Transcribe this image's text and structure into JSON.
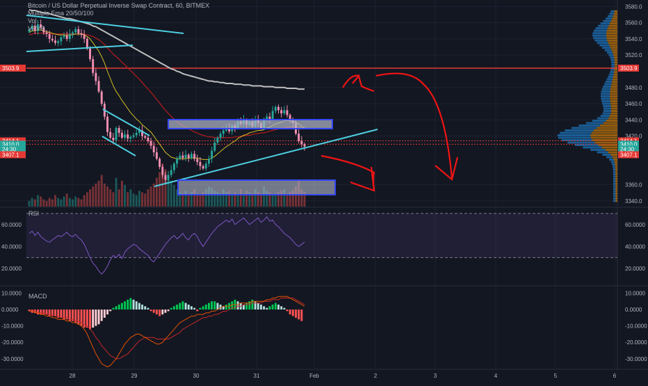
{
  "header": {
    "title": "Bitcoin / US Dollar Perpetual Inverse Swap Contract, 60, BITMEX",
    "indicator1": "Multiple Ema 20/50/100",
    "indicator2": "Vol",
    "indicator3": "VPVR"
  },
  "colors": {
    "background": "#131722",
    "up": "#26a69a",
    "down": "#ef5350",
    "wick_down": "#f48fb1",
    "ema20": "#d4c025",
    "ema50": "#b71c1c",
    "ema100": "#bfbfbf",
    "trendline": "#4dd0e1",
    "hline": "#e53935",
    "annotation": "#f01414",
    "rsi": "#7e57c2",
    "macd": "#e65100",
    "signal": "#c62828",
    "hist_up": "#00c853",
    "hist_up_light": "#b2dfdb",
    "hist_down": "#ff5252",
    "hist_down_light": "#ffcdd2"
  },
  "chart_data": [
    {
      "type": "candlestick",
      "title": "Bitcoin / US Dollar Perpetual Inverse Swap Contract, 60, BITMEX",
      "x_ticks": [
        "28",
        "29",
        "30",
        "31",
        "Feb",
        "2",
        "3",
        "4",
        "5",
        "6"
      ],
      "y_ticks": [
        "3580.0",
        "3560.0",
        "3540.0",
        "3520.0",
        "3480.0",
        "3460.0",
        "3440.0",
        "3420.0",
        "3360.0",
        "3340.0"
      ],
      "ylim": [
        3333,
        3588
      ],
      "price_labels": [
        {
          "value": "3503.9",
          "price": 3503.9,
          "color": "#e53935"
        },
        {
          "value": "3414.1",
          "price": 3414.1,
          "color": "#e53935"
        },
        {
          "value": "3410.0",
          "price": 3410.0,
          "color": "#26a69a"
        },
        {
          "value": "24:30",
          "price": 3404.0,
          "color": "#26a69a"
        },
        {
          "value": "3407.1",
          "price": 3397.0,
          "color": "#e53935"
        }
      ],
      "close_series": [
        3552,
        3556,
        3550,
        3558,
        3554,
        3548,
        3546,
        3540,
        3538,
        3535,
        3537,
        3542,
        3544,
        3540,
        3546,
        3548,
        3552,
        3547,
        3545,
        3540,
        3528,
        3515,
        3498,
        3488,
        3475,
        3460,
        3444,
        3425,
        3418,
        3415,
        3430,
        3424,
        3418,
        3422,
        3417,
        3419,
        3421,
        3424,
        3427,
        3420,
        3418,
        3414,
        3408,
        3400,
        3392,
        3382,
        3372,
        3366,
        3372,
        3378,
        3386,
        3392,
        3396,
        3393,
        3397,
        3393,
        3398,
        3392,
        3388,
        3383,
        3380,
        3386,
        3392,
        3402,
        3412,
        3418,
        3423,
        3427,
        3430,
        3426,
        3433,
        3430,
        3438,
        3435,
        3440,
        3434,
        3438,
        3432,
        3440,
        3436,
        3430,
        3440,
        3444,
        3441,
        3451,
        3456,
        3452,
        3448,
        3452,
        3446,
        3440,
        3436,
        3423,
        3414,
        3410,
        3407
      ],
      "ema20_series": [
        3548,
        3550,
        3550,
        3551,
        3551,
        3550,
        3549,
        3548,
        3547,
        3546,
        3545,
        3545,
        3545,
        3544,
        3545,
        3545,
        3546,
        3546,
        3546,
        3545,
        3543,
        3540,
        3535,
        3530,
        3525,
        3518,
        3510,
        3500,
        3491,
        3482,
        3475,
        3470,
        3464,
        3459,
        3454,
        3449,
        3445,
        3441,
        3438,
        3434,
        3431,
        3428,
        3425,
        3420,
        3415,
        3410,
        3405,
        3400,
        3397,
        3394,
        3393,
        3392,
        3392,
        3392,
        3392,
        3393,
        3393,
        3393,
        3393,
        3392,
        3391,
        3391,
        3391,
        3393,
        3395,
        3398,
        3401,
        3404,
        3407,
        3409,
        3412,
        3414,
        3417,
        3419,
        3421,
        3422,
        3424,
        3425,
        3426,
        3427,
        3427,
        3428,
        3430,
        3431,
        3433,
        3435,
        3436,
        3437,
        3439,
        3439,
        3439,
        3439,
        3437,
        3435,
        3432,
        3430
      ],
      "ema50_series": [
        3545,
        3546,
        3547,
        3547,
        3547,
        3547,
        3547,
        3547,
        3546,
        3546,
        3546,
        3546,
        3546,
        3546,
        3546,
        3546,
        3546,
        3546,
        3546,
        3546,
        3545,
        3544,
        3543,
        3541,
        3539,
        3536,
        3533,
        3529,
        3525,
        3521,
        3518,
        3515,
        3511,
        3508,
        3504,
        3501,
        3497,
        3494,
        3490,
        3486,
        3482,
        3478,
        3474,
        3470,
        3465,
        3461,
        3456,
        3452,
        3448,
        3444,
        3441,
        3438,
        3435,
        3433,
        3431,
        3429,
        3427,
        3425,
        3424,
        3422,
        3421,
        3420,
        3419,
        3419,
        3418,
        3418,
        3418,
        3418,
        3418,
        3418,
        3418,
        3419,
        3419,
        3420,
        3420,
        3421,
        3421,
        3422,
        3423,
        3423,
        3424,
        3424,
        3425,
        3426,
        3427,
        3428,
        3429,
        3429,
        3430,
        3431,
        3431,
        3431,
        3431,
        3431,
        3430,
        3430
      ],
      "ema100_series": [
        3576,
        3575,
        3575,
        3574,
        3573,
        3572,
        3572,
        3571,
        3570,
        3569,
        3568,
        3567,
        3566,
        3565,
        3565,
        3564,
        3563,
        3562,
        3561,
        3560,
        3559,
        3558,
        3556,
        3555,
        3553,
        3551,
        3549,
        3547,
        3545,
        3543,
        3541,
        3539,
        3537,
        3535,
        3533,
        3531,
        3529,
        3527,
        3525,
        3523,
        3521,
        3519,
        3517,
        3515,
        3513,
        3511,
        3509,
        3507,
        3505,
        3503,
        3502,
        3500,
        3499,
        3497,
        3496,
        3495,
        3494,
        3493,
        3492,
        3491,
        3490,
        3489,
        3488,
        3488,
        3487,
        3487,
        3486,
        3486,
        3485,
        3485,
        3485,
        3484,
        3484,
        3484,
        3483,
        3483,
        3483,
        3482,
        3482,
        3482,
        3482,
        3481,
        3481,
        3481,
        3481,
        3480,
        3480,
        3480,
        3480,
        3479,
        3479,
        3479,
        3479,
        3478,
        3478,
        3478
      ],
      "volume_series": [
        4,
        6,
        5,
        8,
        7,
        5,
        4,
        6,
        5,
        8,
        6,
        5,
        7,
        9,
        6,
        5,
        7,
        6,
        5,
        8,
        10,
        12,
        14,
        16,
        18,
        22,
        16,
        14,
        12,
        10,
        20,
        12,
        18,
        15,
        10,
        12,
        9,
        8,
        11,
        10,
        9,
        12,
        14,
        16,
        20,
        24,
        30,
        26,
        22,
        18,
        15,
        12,
        10,
        9,
        11,
        8,
        10,
        12,
        9,
        8,
        10,
        12,
        14,
        13,
        11,
        10,
        9,
        12,
        10,
        11,
        9,
        10,
        8,
        12,
        9,
        11,
        10,
        9,
        12,
        10,
        9,
        14,
        11,
        10,
        8,
        9,
        10,
        11,
        12,
        9,
        10,
        11,
        14,
        18,
        12,
        10
      ]
    },
    {
      "type": "line",
      "title": "RSI",
      "y_ticks": [
        "60.0000",
        "40.0000",
        "20.0000"
      ],
      "ylim": [
        5,
        75
      ],
      "bands": [
        70,
        30
      ],
      "values": [
        52,
        54,
        50,
        53,
        49,
        47,
        45,
        44,
        46,
        48,
        50,
        49,
        51,
        53,
        50,
        49,
        51,
        48,
        46,
        42,
        36,
        30,
        25,
        22,
        18,
        15,
        18,
        22,
        28,
        32,
        30,
        33,
        29,
        35,
        38,
        40,
        42,
        41,
        38,
        36,
        34,
        32,
        28,
        26,
        30,
        34,
        38,
        42,
        45,
        48,
        50,
        47,
        49,
        52,
        48,
        46,
        50,
        52,
        49,
        44,
        40,
        44,
        48,
        52,
        55,
        58,
        60,
        62,
        64,
        62,
        65,
        60,
        62,
        64,
        66,
        63,
        60,
        62,
        64,
        66,
        62,
        64,
        67,
        63,
        64,
        60,
        58,
        55,
        52,
        50,
        48,
        45,
        42,
        40,
        42,
        44
      ]
    },
    {
      "type": "bar",
      "title": "MACD",
      "y_ticks": [
        "10.0000",
        "0.0000",
        "-10.0000",
        "-20.0000",
        "-30.0000"
      ],
      "ylim": [
        -36,
        14
      ],
      "histogram": [
        -1,
        -2,
        -2,
        -3,
        -3,
        -3,
        -3,
        -4,
        -4,
        -4,
        -5,
        -5,
        -6,
        -6,
        -7,
        -7,
        -8,
        -9,
        -10,
        -11,
        -11,
        -12,
        -11,
        -10,
        -9,
        -7,
        -5,
        -3,
        -1,
        1,
        2,
        3,
        4,
        5,
        6,
        7,
        6,
        5,
        4,
        3,
        2,
        1,
        -1,
        -2,
        -3,
        -4,
        -3,
        -2,
        -1,
        1,
        2,
        3,
        4,
        5,
        4,
        3,
        2,
        1,
        -1,
        1,
        2,
        3,
        4,
        5,
        5,
        4,
        3,
        2,
        3,
        4,
        5,
        6,
        5,
        4,
        3,
        4,
        5,
        6,
        5,
        4,
        3,
        2,
        1,
        2,
        3,
        4,
        3,
        2,
        1,
        -1,
        -3,
        -4,
        -5,
        -6,
        -7
      ],
      "macd": [
        -1,
        -1,
        -2,
        -2,
        -3,
        -3,
        -4,
        -4,
        -5,
        -5,
        -6,
        -6,
        -6,
        -7,
        -7,
        -8,
        -8,
        -9,
        -10,
        -12,
        -15,
        -19,
        -23,
        -27,
        -30,
        -33,
        -34,
        -35,
        -34,
        -32,
        -30,
        -27,
        -24,
        -21,
        -19,
        -17,
        -16,
        -15,
        -15,
        -16,
        -17,
        -18,
        -19,
        -20,
        -21,
        -21,
        -20,
        -18,
        -16,
        -14,
        -12,
        -10,
        -8,
        -7,
        -6,
        -5,
        -4,
        -4,
        -3,
        -3,
        -3,
        -2,
        -2,
        -1,
        -1,
        0,
        1,
        2,
        2,
        2,
        3,
        3,
        3,
        4,
        4,
        4,
        4,
        5,
        5,
        5,
        5,
        5,
        6,
        6,
        7,
        7,
        8,
        8,
        8,
        8,
        7,
        6,
        5,
        4,
        3,
        2
      ],
      "signal": [
        -1,
        -1,
        -1,
        -2,
        -2,
        -2,
        -3,
        -3,
        -3,
        -4,
        -4,
        -5,
        -5,
        -5,
        -6,
        -6,
        -7,
        -7,
        -8,
        -9,
        -10,
        -12,
        -14,
        -17,
        -19,
        -22,
        -24,
        -26,
        -28,
        -29,
        -30,
        -30,
        -29,
        -28,
        -27,
        -25,
        -23,
        -21,
        -19,
        -18,
        -17,
        -17,
        -17,
        -17,
        -18,
        -18,
        -18,
        -18,
        -18,
        -17,
        -16,
        -15,
        -14,
        -12,
        -11,
        -10,
        -9,
        -8,
        -7,
        -6,
        -5,
        -5,
        -4,
        -4,
        -3,
        -3,
        -2,
        -1,
        -1,
        0,
        1,
        1,
        2,
        2,
        3,
        3,
        3,
        4,
        4,
        4,
        4,
        5,
        5,
        5,
        6,
        6,
        6,
        7,
        7,
        7,
        7,
        7,
        6,
        5,
        4,
        3
      ]
    }
  ]
}
